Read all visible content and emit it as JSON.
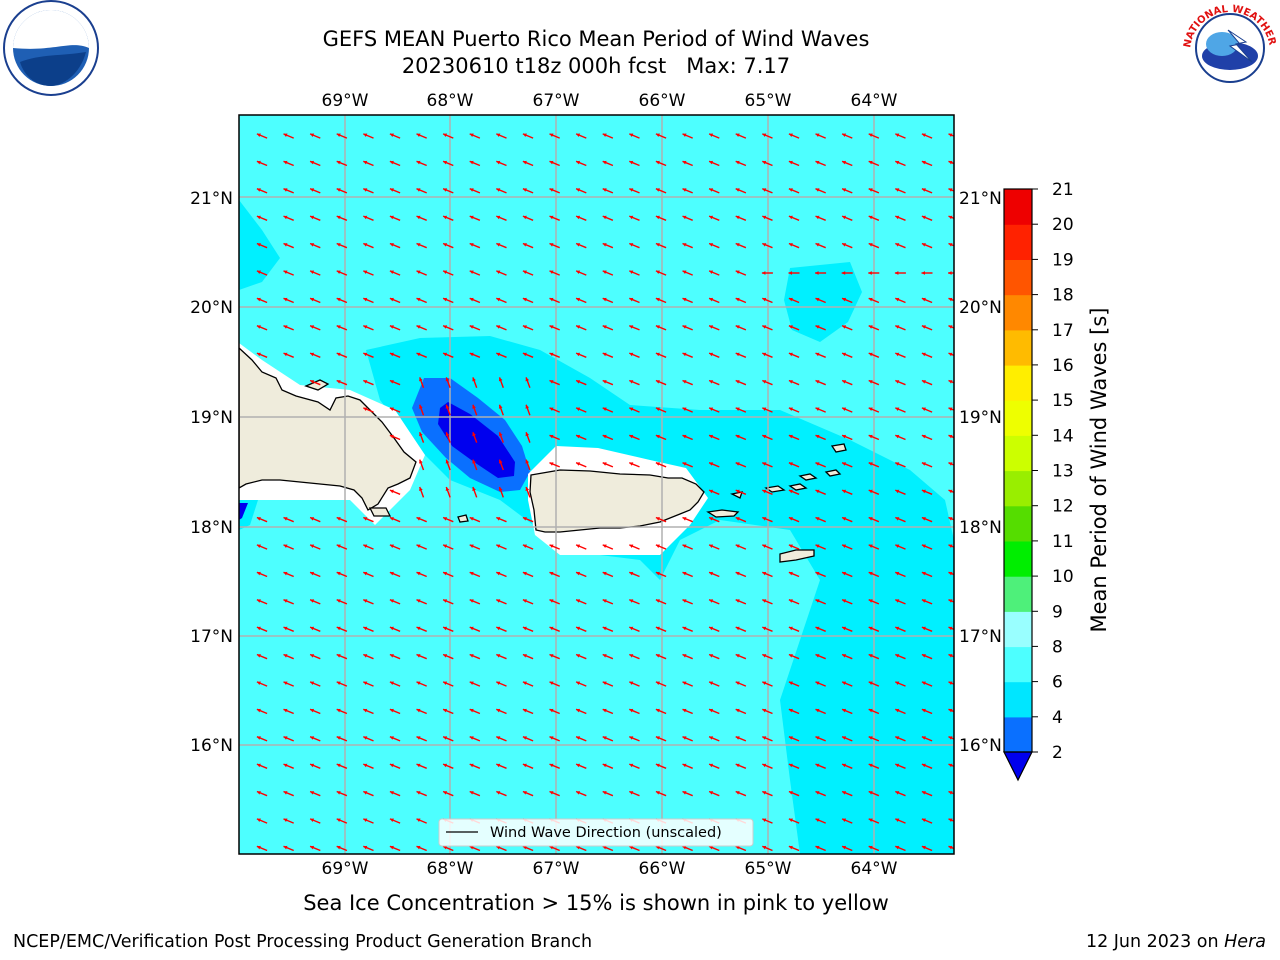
{
  "title_line1": "GEFS MEAN Puerto Rico Mean Period of Wind Waves",
  "title_line2": "20230610 t18z 000h fcst   Max: 7.17",
  "subtitle": "Sea Ice Concentration > 15% is shown in pink to yellow",
  "footer_left": "NCEP/EMC/Verification Post Processing Product Generation Branch",
  "footer_date": "12 Jun 2023 on ",
  "footer_host": "Hera",
  "legend_label": "Wind Wave Direction (unscaled)",
  "logos": {
    "left": "NOAA",
    "right": "NATIONAL WEATHER SERVICE"
  },
  "map": {
    "lon_labels": [
      "69°W",
      "68°W",
      "67°W",
      "66°W",
      "65°W",
      "64°W"
    ],
    "lat_labels": [
      "21°N",
      "20°N",
      "19°N",
      "18°N",
      "17°N",
      "16°N"
    ]
  },
  "colorbar": {
    "label": "Mean Period of Wind Waves [s]",
    "tick_labels": [
      "2",
      "4",
      "6",
      "8",
      "9",
      "10",
      "11",
      "12",
      "13",
      "14",
      "15",
      "16",
      "17",
      "18",
      "19",
      "20",
      "21"
    ],
    "colors": [
      "#0000ee",
      "#0a70ff",
      "#00e6ff",
      "#4dffff",
      "#99ffff",
      "#4ef07a",
      "#00ee00",
      "#55dd00",
      "#99ee00",
      "#ccff00",
      "#eeff00",
      "#ffee00",
      "#ffbb00",
      "#ff8800",
      "#ff5500",
      "#ff2200",
      "#ee0000"
    ]
  },
  "colors": {
    "ocean": "#4dffff",
    "ocean_6_8": "#00f0ff",
    "ocean_4_6": "#0a70ff",
    "ocean_2_4": "#0000ee",
    "land": "#efecdc",
    "arrow": "#ff0000",
    "grid": "#b0b0b0"
  }
}
